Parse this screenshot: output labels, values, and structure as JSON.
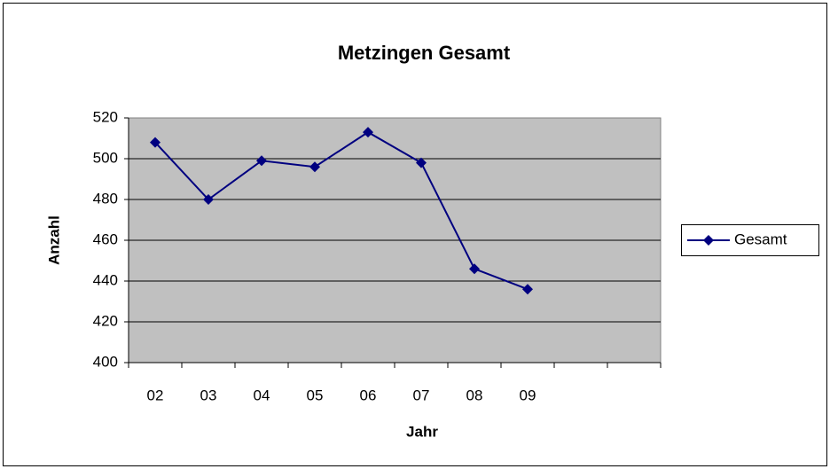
{
  "chart_data": {
    "type": "line",
    "title": "Metzingen Gesamt",
    "x_label": "Jahr",
    "y_label": "Anzahl",
    "categories": [
      "02",
      "03",
      "04",
      "05",
      "06",
      "07",
      "08",
      "09",
      null,
      null
    ],
    "series": [
      {
        "name": "Gesamt",
        "color": "#000080",
        "values": [
          508,
          480,
          499,
          496,
          513,
          498,
          446,
          436,
          null,
          null
        ]
      }
    ],
    "ylim": [
      400,
      520
    ],
    "yticks": [
      400,
      420,
      440,
      460,
      480,
      500,
      520
    ],
    "grid": true,
    "legend": "right"
  }
}
